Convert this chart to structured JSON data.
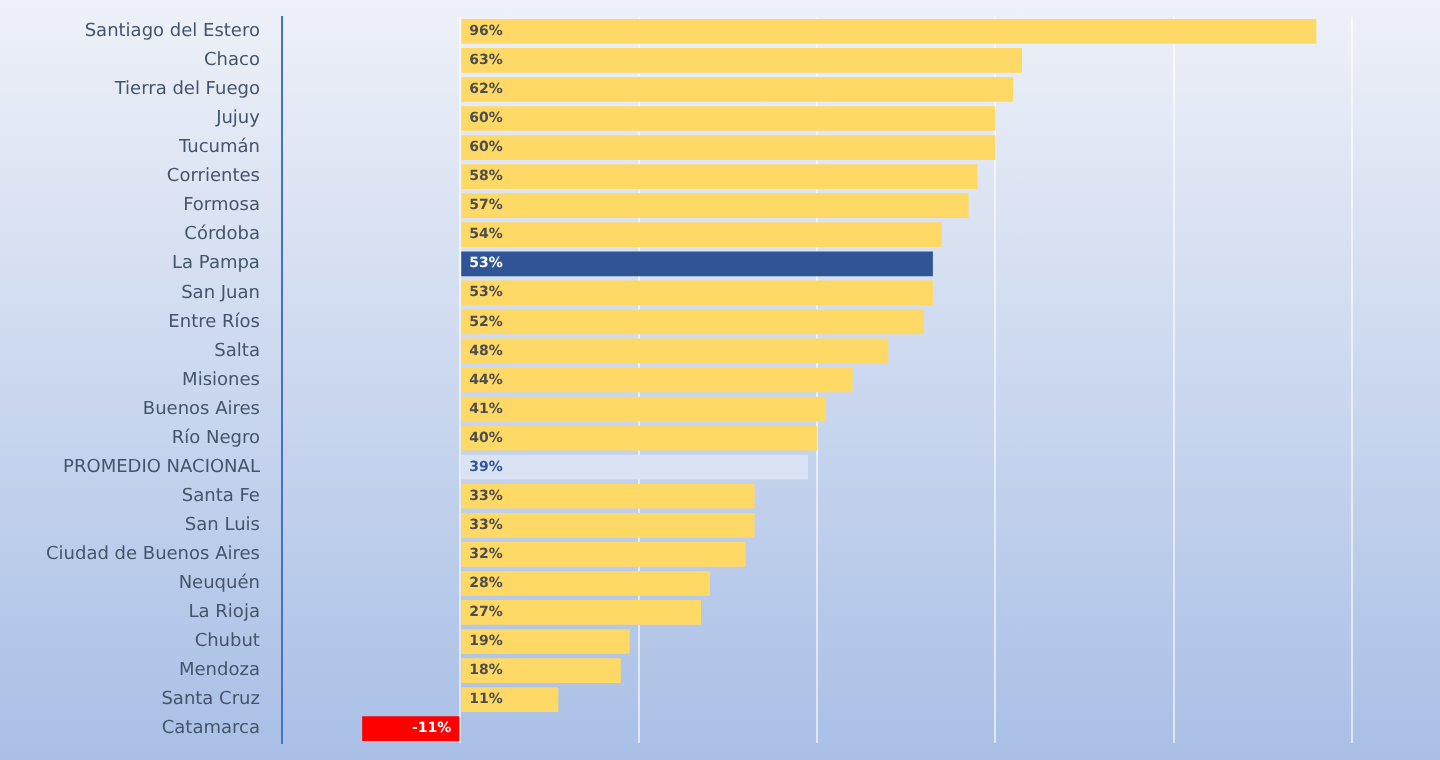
{
  "chart_data": {
    "type": "bar",
    "orientation": "horizontal",
    "categories": [
      "Santiago del Estero",
      "Chaco",
      "Tierra del Fuego",
      "Jujuy",
      "Tucumán",
      "Corrientes",
      "Formosa",
      "Córdoba",
      "La Pampa",
      "San Juan",
      "Entre Ríos",
      "Salta",
      "Misiones",
      "Buenos Aires",
      "Río Negro",
      "PROMEDIO NACIONAL",
      "Santa Fe",
      "San Luis",
      "Ciudad de Buenos Aires",
      "Neuquén",
      "La Rioja",
      "Chubut",
      "Mendoza",
      "Santa Cruz",
      "Catamarca"
    ],
    "values": [
      96,
      63,
      62,
      60,
      60,
      58,
      57,
      54,
      53,
      53,
      52,
      48,
      44,
      41,
      40,
      39,
      33,
      33,
      32,
      28,
      27,
      19,
      18,
      11,
      -11
    ],
    "value_labels": [
      "96%",
      "63%",
      "62%",
      "60%",
      "60%",
      "58%",
      "57%",
      "54%",
      "53%",
      "53%",
      "52%",
      "48%",
      "44%",
      "41%",
      "40%",
      "39%",
      "33%",
      "33%",
      "32%",
      "28%",
      "27%",
      "19%",
      "18%",
      "11%",
      "-11%"
    ],
    "colors": [
      "#ffd966",
      "#ffd966",
      "#ffd966",
      "#ffd966",
      "#ffd966",
      "#ffd966",
      "#ffd966",
      "#ffd966",
      "#2f5597",
      "#ffd966",
      "#ffd966",
      "#ffd966",
      "#ffd966",
      "#ffd966",
      "#ffd966",
      "#dae3f3",
      "#ffd966",
      "#ffd966",
      "#ffd966",
      "#ffd966",
      "#ffd966",
      "#ffd966",
      "#ffd966",
      "#ffd966",
      "#ff0000"
    ],
    "xlim": [
      -20,
      100
    ],
    "xticks": [
      {
        "value": -20,
        "label": null
      },
      {
        "value": 0,
        "label": null
      },
      {
        "value": 20,
        "label": null
      },
      {
        "value": 40,
        "label": null
      },
      {
        "value": 60,
        "label": null
      },
      {
        "value": 80,
        "label": null
      },
      {
        "value": 100,
        "label": null
      }
    ],
    "grid": "x",
    "tick_labels": "y",
    "legend": false
  }
}
